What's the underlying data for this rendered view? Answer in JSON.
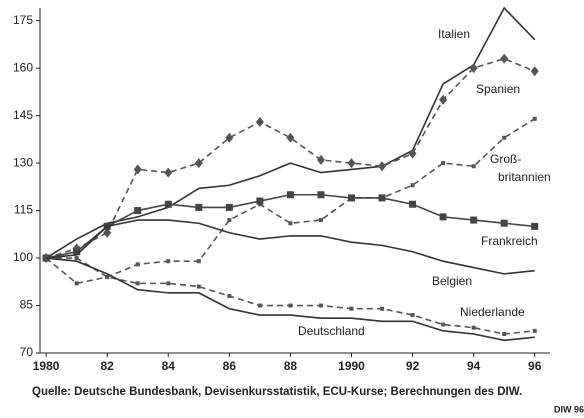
{
  "chart_data": {
    "type": "line",
    "x": [
      1980,
      1981,
      1982,
      1983,
      1984,
      1985,
      1986,
      1987,
      1988,
      1989,
      1990,
      1991,
      1992,
      1993,
      1994,
      1995,
      1996
    ],
    "xlim": [
      1979.8,
      1996.5
    ],
    "xticks": [
      {
        "value": 1980,
        "label": "1980"
      },
      {
        "value": 1982,
        "label": "82"
      },
      {
        "value": 1984,
        "label": "84"
      },
      {
        "value": 1986,
        "label": "86"
      },
      {
        "value": 1988,
        "label": "88"
      },
      {
        "value": 1990,
        "label": "1990"
      },
      {
        "value": 1992,
        "label": "92"
      },
      {
        "value": 1994,
        "label": "94"
      },
      {
        "value": 1996,
        "label": "96"
      }
    ],
    "ylim": [
      70,
      179
    ],
    "yticks": [
      70,
      85,
      100,
      115,
      130,
      145,
      160,
      175
    ],
    "series": [
      {
        "name": "Italien",
        "color": "#333",
        "dash": false,
        "marker": null,
        "values": [
          100,
          106,
          111,
          113,
          116,
          122,
          123,
          126,
          130,
          127,
          128,
          129,
          134,
          155,
          161,
          179,
          169
        ]
      },
      {
        "name": "Spanien",
        "color": "#555",
        "dash": true,
        "marker": "diamond",
        "values": [
          100,
          103,
          108,
          128,
          127,
          130,
          138,
          143,
          138,
          131,
          130,
          129,
          133,
          150,
          160,
          163,
          159
        ]
      },
      {
        "name": "Groß-\nbritannien",
        "color": "#555",
        "dash": true,
        "marker": "dot",
        "values": [
          100,
          92,
          94,
          98,
          99,
          99,
          112,
          117,
          111,
          112,
          119,
          119,
          123,
          130,
          129,
          138,
          144
        ]
      },
      {
        "name": "Frankreich",
        "color": "#444",
        "dash": false,
        "marker": "square",
        "values": [
          100,
          102,
          110,
          115,
          117,
          116,
          116,
          118,
          120,
          120,
          119,
          119,
          117,
          113,
          112,
          111,
          110
        ]
      },
      {
        "name": "Belgien",
        "color": "#333",
        "dash": false,
        "marker": null,
        "values": [
          100,
          101,
          110,
          112,
          112,
          111,
          108,
          106,
          107,
          107,
          105,
          104,
          102,
          99,
          97,
          95,
          96
        ]
      },
      {
        "name": "Niederlande",
        "color": "#555",
        "dash": true,
        "marker": "dot",
        "values": [
          100,
          100,
          94,
          92,
          92,
          91,
          88,
          85,
          85,
          85,
          84,
          84,
          82,
          79,
          78,
          76,
          77
        ]
      },
      {
        "name": "Deutschland",
        "color": "#333",
        "dash": false,
        "marker": null,
        "values": [
          100,
          99,
          95,
          90,
          89,
          89,
          84,
          82,
          82,
          81,
          81,
          80,
          80,
          77,
          76,
          74,
          75
        ]
      }
    ],
    "source": "Quelle: Deutsche Bundesbank, Devisenkursstatistik, ECU-Kurse; Berechnungen des DIW.",
    "credit": "DIW 96"
  }
}
